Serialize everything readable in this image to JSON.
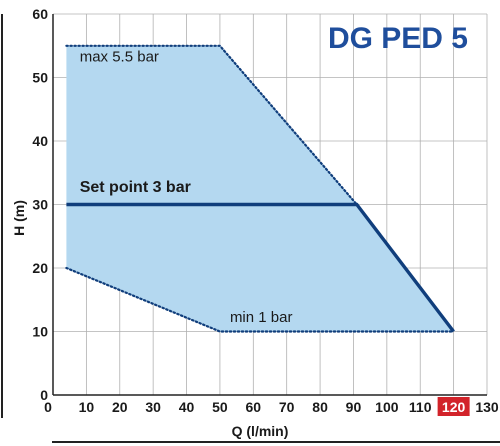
{
  "chart_data": {
    "type": "area",
    "title": "DG PED 5",
    "xlabel": "Q (l/min)",
    "ylabel": "H (m)",
    "xlim": [
      0,
      130
    ],
    "ylim": [
      0,
      60
    ],
    "xticks": [
      0,
      10,
      20,
      30,
      40,
      50,
      60,
      70,
      80,
      90,
      100,
      110,
      120,
      130
    ],
    "yticks": [
      0,
      10,
      20,
      30,
      40,
      50,
      60
    ],
    "highlighted_xtick": 120,
    "grid": true,
    "colors": {
      "fill": "#b4d8f0",
      "line": "#103e7c",
      "highlight": "#d2232a",
      "grid": "#b0b0b0",
      "title": "#1f4e9c"
    },
    "series": [
      {
        "name": "Set point 3 bar",
        "style": "solid",
        "x": [
          4,
          91,
          120
        ],
        "y": [
          30,
          30,
          10
        ]
      },
      {
        "name": "max 5.5 bar",
        "style": "dotted",
        "x": [
          4,
          50,
          91
        ],
        "y": [
          55,
          55,
          30
        ]
      },
      {
        "name": "min 1 bar",
        "style": "dotted",
        "x": [
          4,
          50,
          120
        ],
        "y": [
          20,
          10,
          10
        ]
      }
    ],
    "region": {
      "x": [
        4,
        50,
        91,
        120,
        50,
        4
      ],
      "y": [
        55,
        55,
        30,
        10,
        10,
        20
      ]
    },
    "annotations": [
      {
        "text": "max 5.5 bar",
        "x": 8,
        "y": 52.5
      },
      {
        "text": "Set point 3 bar",
        "x": 8,
        "y": 32
      },
      {
        "text": "min 1 bar",
        "x": 53,
        "y": 11.5
      }
    ]
  }
}
